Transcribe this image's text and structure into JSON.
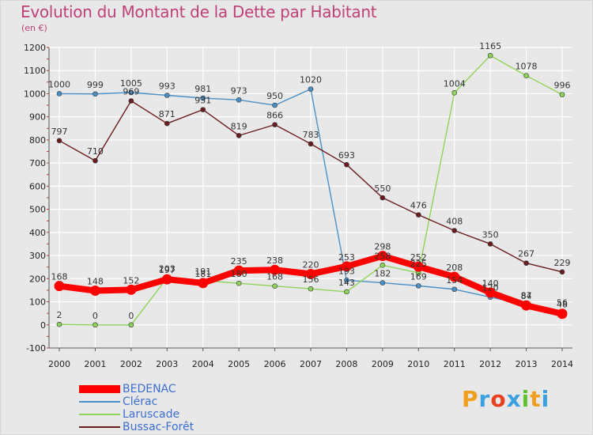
{
  "title": "Evolution du Montant de la Dette par Habitant",
  "unit_label": "(en €)",
  "logo_text": "Proxiti",
  "chart_data": {
    "type": "line",
    "title": "Evolution du Montant de la Dette par Habitant",
    "subtitle": "(en €)",
    "x": [
      "2000",
      "2001",
      "2002",
      "2003",
      "2004",
      "2005",
      "2006",
      "2007",
      "2008",
      "2009",
      "2010",
      "2011",
      "2012",
      "2013",
      "2014"
    ],
    "y_ticks": [
      -100,
      0,
      100,
      200,
      300,
      400,
      500,
      600,
      700,
      800,
      900,
      1000,
      1100,
      1200
    ],
    "ylim": [
      -100,
      1200
    ],
    "grid": true,
    "legend_position": "bottom-left",
    "series": [
      {
        "name": "BEDENAC",
        "color": "#ff0000",
        "values": [
          168,
          148,
          152,
          197,
          181,
          235,
          238,
          220,
          253,
          298,
          252,
          208,
          140,
          84,
          48
        ],
        "labels": [
          "168",
          "148",
          "152",
          "197",
          "181",
          "235",
          "238",
          "220",
          "253",
          "298",
          "252",
          "208",
          "140",
          "84",
          "48"
        ]
      },
      {
        "name": "Clérac",
        "color": "#4a90c8",
        "values": [
          1000,
          999,
          1005,
          993,
          981,
          973,
          950,
          1020,
          193,
          182,
          169,
          154,
          120,
          87,
          56
        ],
        "labels": [
          "1000",
          "999",
          "1005",
          "993",
          "981",
          "973",
          "950",
          "1020",
          "193",
          "182",
          "169",
          "154",
          "120",
          "87",
          "56"
        ]
      },
      {
        "name": "Laruscade",
        "color": "#8fd45a",
        "values": [
          2,
          0,
          0,
          203,
          191,
          180,
          168,
          156,
          143,
          258,
          225,
          1004,
          1165,
          1078,
          996
        ],
        "labels": [
          "2",
          "0",
          "0",
          "203",
          "191",
          "180",
          "168",
          "156",
          "143",
          "258",
          "225",
          "1004",
          "1165",
          "1078",
          "996"
        ]
      },
      {
        "name": "Bussac-Forêt",
        "color": "#6b1d1d",
        "values": [
          797,
          710,
          969,
          871,
          931,
          819,
          866,
          783,
          693,
          550,
          476,
          408,
          350,
          267,
          229
        ],
        "labels": [
          "797",
          "710",
          "969",
          "871",
          "931",
          "819",
          "866",
          "783",
          "693",
          "550",
          "476",
          "408",
          "350",
          "267",
          "229"
        ]
      }
    ]
  }
}
